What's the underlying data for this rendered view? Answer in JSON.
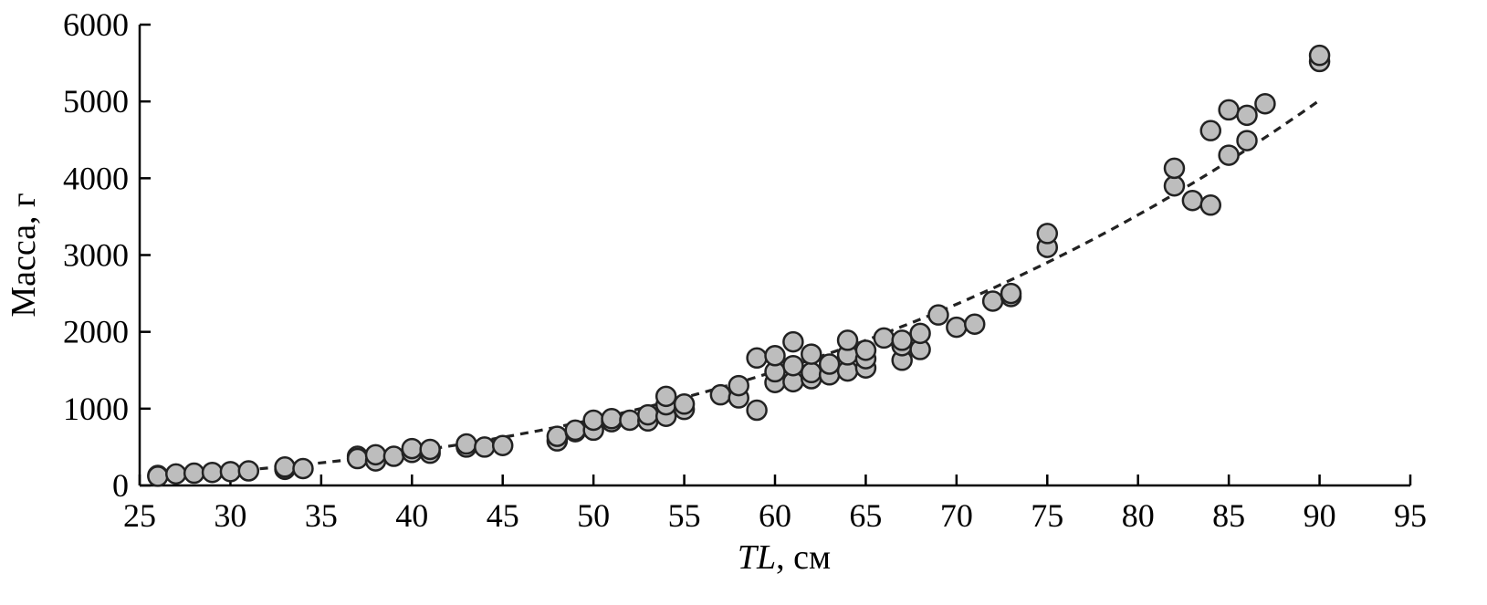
{
  "chart_data": {
    "type": "scatter",
    "xlabel_italic": "TL",
    "xlabel_rest": ", см",
    "ylabel": "Масса, г",
    "xlim": [
      25,
      95
    ],
    "ylim": [
      0,
      6000
    ],
    "xticks": [
      25,
      30,
      35,
      40,
      45,
      50,
      55,
      60,
      65,
      70,
      75,
      80,
      85,
      90,
      95
    ],
    "yticks": [
      0,
      1000,
      2000,
      3000,
      4000,
      5000,
      6000
    ],
    "grid": false,
    "legend": "none",
    "colors": {
      "marker_fill": "#bdbdbd",
      "marker_edge": "#222222",
      "fit_line": "#222222"
    },
    "trendline": {
      "style": "dashed",
      "form": "power",
      "a": 0.00688,
      "b": 3.0,
      "x_range": [
        26,
        90
      ]
    },
    "points": [
      [
        26,
        130
      ],
      [
        26,
        120
      ],
      [
        27,
        150
      ],
      [
        28,
        160
      ],
      [
        29,
        170
      ],
      [
        30,
        180
      ],
      [
        31,
        190
      ],
      [
        33,
        210
      ],
      [
        33,
        240
      ],
      [
        34,
        220
      ],
      [
        37,
        380
      ],
      [
        37,
        350
      ],
      [
        38,
        320
      ],
      [
        38,
        400
      ],
      [
        39,
        380
      ],
      [
        40,
        430
      ],
      [
        40,
        480
      ],
      [
        41,
        420
      ],
      [
        41,
        470
      ],
      [
        43,
        500
      ],
      [
        43,
        540
      ],
      [
        44,
        500
      ],
      [
        45,
        520
      ],
      [
        48,
        580
      ],
      [
        48,
        640
      ],
      [
        49,
        700
      ],
      [
        49,
        720
      ],
      [
        50,
        720
      ],
      [
        50,
        850
      ],
      [
        51,
        830
      ],
      [
        51,
        870
      ],
      [
        52,
        850
      ],
      [
        53,
        840
      ],
      [
        53,
        920
      ],
      [
        54,
        900
      ],
      [
        54,
        1050
      ],
      [
        54,
        1160
      ],
      [
        55,
        990
      ],
      [
        55,
        1060
      ],
      [
        57,
        1180
      ],
      [
        58,
        1140
      ],
      [
        58,
        1300
      ],
      [
        59,
        980
      ],
      [
        59,
        1660
      ],
      [
        60,
        1340
      ],
      [
        60,
        1480
      ],
      [
        60,
        1690
      ],
      [
        61,
        1350
      ],
      [
        61,
        1560
      ],
      [
        61,
        1870
      ],
      [
        62,
        1390
      ],
      [
        62,
        1470
      ],
      [
        62,
        1710
      ],
      [
        63,
        1440
      ],
      [
        63,
        1580
      ],
      [
        64,
        1490
      ],
      [
        64,
        1700
      ],
      [
        64,
        1890
      ],
      [
        65,
        1530
      ],
      [
        65,
        1650
      ],
      [
        65,
        1760
      ],
      [
        66,
        1920
      ],
      [
        67,
        1630
      ],
      [
        67,
        1820
      ],
      [
        67,
        1890
      ],
      [
        68,
        1770
      ],
      [
        68,
        1980
      ],
      [
        69,
        2220
      ],
      [
        70,
        2060
      ],
      [
        71,
        2100
      ],
      [
        72,
        2400
      ],
      [
        73,
        2460
      ],
      [
        73,
        2500
      ],
      [
        75,
        3100
      ],
      [
        75,
        3280
      ],
      [
        82,
        3900
      ],
      [
        82,
        4130
      ],
      [
        83,
        3710
      ],
      [
        84,
        3650
      ],
      [
        84,
        4620
      ],
      [
        85,
        4300
      ],
      [
        85,
        4890
      ],
      [
        86,
        4490
      ],
      [
        86,
        4820
      ],
      [
        87,
        4970
      ],
      [
        90,
        5520
      ],
      [
        90,
        5600
      ]
    ]
  }
}
